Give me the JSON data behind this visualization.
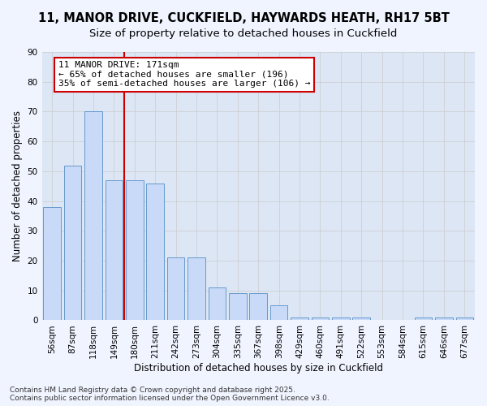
{
  "title_line1": "11, MANOR DRIVE, CUCKFIELD, HAYWARDS HEATH, RH17 5BT",
  "title_line2": "Size of property relative to detached houses in Cuckfield",
  "xlabel": "Distribution of detached houses by size in Cuckfield",
  "ylabel": "Number of detached properties",
  "categories": [
    "56sqm",
    "87sqm",
    "118sqm",
    "149sqm",
    "180sqm",
    "211sqm",
    "242sqm",
    "273sqm",
    "304sqm",
    "335sqm",
    "367sqm",
    "398sqm",
    "429sqm",
    "460sqm",
    "491sqm",
    "522sqm",
    "553sqm",
    "584sqm",
    "615sqm",
    "646sqm",
    "677sqm"
  ],
  "values": [
    38,
    52,
    70,
    47,
    47,
    46,
    21,
    21,
    11,
    9,
    9,
    5,
    1,
    1,
    1,
    1,
    0,
    0,
    1,
    1,
    1
  ],
  "bar_color_face": "#c9daf8",
  "bar_color_edge": "#6699cc",
  "vline_pos": 3.5,
  "vline_color": "#cc0000",
  "annotation_text": "11 MANOR DRIVE: 171sqm\n← 65% of detached houses are smaller (196)\n35% of semi-detached houses are larger (106) →",
  "annotation_box_color": "#cc0000",
  "annotation_bg": "#ffffff",
  "ylim": [
    0,
    90
  ],
  "yticks": [
    0,
    10,
    20,
    30,
    40,
    50,
    60,
    70,
    80,
    90
  ],
  "grid_color": "#cccccc",
  "bg_color": "#dce6f5",
  "fig_bg_color": "#f0f4ff",
  "footer_line1": "Contains HM Land Registry data © Crown copyright and database right 2025.",
  "footer_line2": "Contains public sector information licensed under the Open Government Licence v3.0.",
  "title_fontsize": 10.5,
  "subtitle_fontsize": 9.5,
  "axis_label_fontsize": 8.5,
  "tick_fontsize": 7.5,
  "annotation_fontsize": 8,
  "footer_fontsize": 6.5
}
